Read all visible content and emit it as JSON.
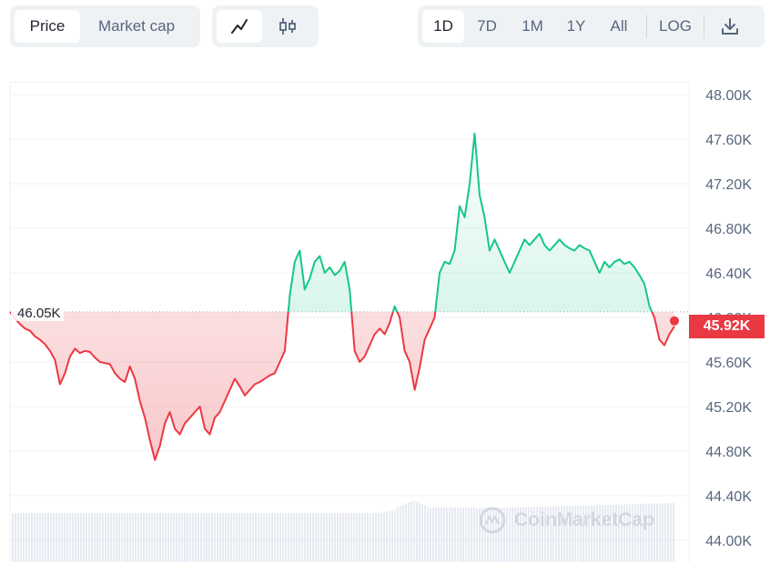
{
  "toolbar": {
    "metric_tabs": [
      {
        "label": "Price",
        "active": true
      },
      {
        "label": "Market cap",
        "active": false
      }
    ],
    "chart_type_icons": [
      "line-chart-icon",
      "candlestick-icon"
    ],
    "range_tabs": [
      {
        "label": "1D",
        "active": true
      },
      {
        "label": "7D",
        "active": false
      },
      {
        "label": "1M",
        "active": false
      },
      {
        "label": "1Y",
        "active": false
      },
      {
        "label": "All",
        "active": false
      }
    ],
    "log_label": "LOG",
    "download_icon": "download-icon"
  },
  "watermark": "CoinMarketCap",
  "colors": {
    "up": "#16c784",
    "down": "#ea3943",
    "grid": "#eff2f5",
    "volume": "#cfd6e4"
  },
  "chart_data": {
    "type": "area",
    "y_unit": "USD",
    "ylim": [
      44000,
      48000
    ],
    "y_ticks": [
      "48.00K",
      "47.60K",
      "47.20K",
      "46.80K",
      "46.40K",
      "46.00K",
      "45.60K",
      "45.20K",
      "44.80K",
      "44.40K",
      "44.00K"
    ],
    "y_tick_values": [
      48000,
      47600,
      47200,
      46800,
      46400,
      46000,
      45600,
      45200,
      44800,
      44400,
      44000
    ],
    "reference_value": 46050,
    "reference_label": "46.05K",
    "current_value": 45920,
    "current_label": "45.92K",
    "grid": true,
    "series": [
      {
        "values": [
          46050,
          45990,
          45940,
          45900,
          45880,
          45830,
          45800,
          45760,
          45700,
          45620,
          45400,
          45500,
          45650,
          45720,
          45680,
          45700,
          45690,
          45640,
          45600,
          45590,
          45580,
          45500,
          45450,
          45420,
          45560,
          45450,
          45250,
          45100,
          44900,
          44720,
          44850,
          45050,
          45150,
          45000,
          44950,
          45050,
          45100,
          45150,
          45200,
          45000,
          44950,
          45100,
          45150,
          45250,
          45350,
          45450,
          45380,
          45300,
          45350,
          45400,
          45420,
          45450,
          45480,
          45500,
          45600,
          45700,
          46200,
          46500,
          46600,
          46250,
          46350,
          46500,
          46550,
          46400,
          46450,
          46380,
          46420,
          46500,
          46250,
          45700,
          45600,
          45650,
          45750,
          45850,
          45900,
          45850,
          45950,
          46100,
          46000,
          45700,
          45600,
          45350,
          45550,
          45800,
          45900,
          46000,
          46400,
          46500,
          46480,
          46600,
          47000,
          46900,
          47200,
          47650,
          47100,
          46900,
          46600,
          46700,
          46600,
          46500,
          46400,
          46500,
          46600,
          46700,
          46650,
          46700,
          46750,
          46650,
          46600,
          46650,
          46700,
          46650,
          46620,
          46600,
          46650,
          46620,
          46600,
          46500,
          46400,
          46500,
          46450,
          46500,
          46520,
          46480,
          46500,
          46450,
          46380,
          46300,
          46100,
          46000,
          45800,
          45750,
          45850,
          45920
        ]
      }
    ]
  }
}
